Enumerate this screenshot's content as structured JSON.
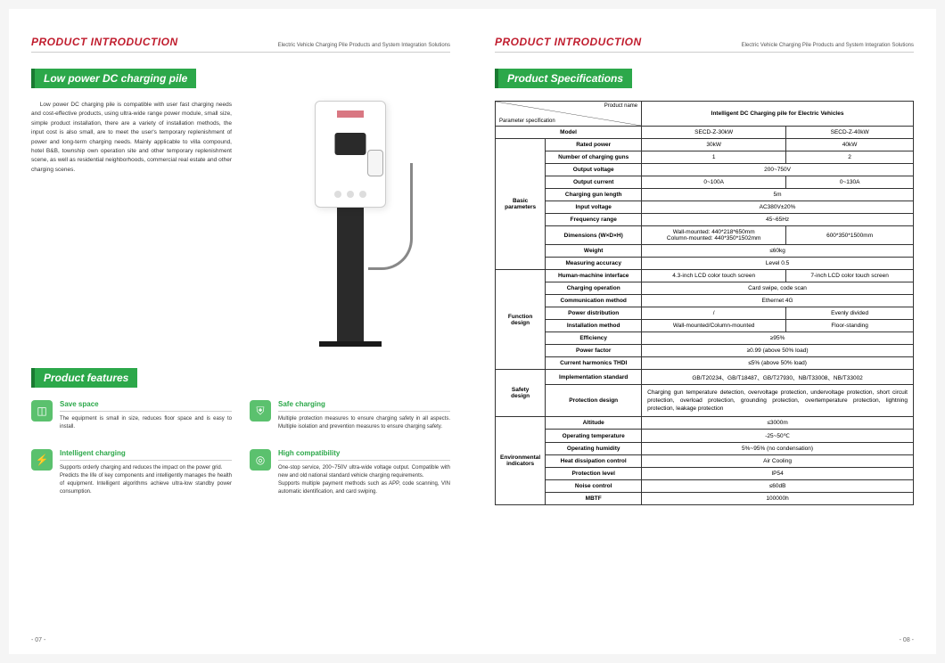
{
  "header": {
    "title": "PRODUCT INTRODUCTION",
    "subtitle": "Electric Vehicle Charging Pile Products and System Integration Solutions"
  },
  "left": {
    "section1_title": "Low power DC charging pile",
    "intro": "Low power DC charging pile is compatible with user fast charging needs and cost-effective products, using ultra-wide range power module, small size, simple product installation, there are a variety of installation methods, the input cost is also small, are to meet the user's temporary replenishment of power and long-term charging needs. Mainly applicable to villa compound, hotel B&B, township own operation site and other temporary replenishment scene, as well as residential neighborhoods, commercial real estate and other charging scenes.",
    "section2_title": "Product features",
    "features": [
      {
        "icon": "◫",
        "title": "Save space",
        "desc": "The equipment is small in size, reduces floor space and is easy to install."
      },
      {
        "icon": "⛨",
        "title": "Safe charging",
        "desc": "Multiple protection measures to ensure charging safety in all aspects. Multiple isolation and prevention measures to ensure charging safety."
      },
      {
        "icon": "⚡",
        "title": "Intelligent charging",
        "desc": "Supports orderly charging and reduces the impact on the power grid.\nPredicts the life of key components and intelligently manages the health of equipment. Intelligent algorithms achieve ultra-low standby power consumption."
      },
      {
        "icon": "◎",
        "title": "High compatibility",
        "desc": "One-stop service, 200~750V ultra-wide voltage output. Compatible with new and old national standard vehicle charging requirements.\nSupports multiple payment methods such as APP, code scanning, VIN automatic identification, and card swiping."
      }
    ],
    "pagenum": "- 07 -"
  },
  "right": {
    "section_title": "Product Specifications",
    "table": {
      "diag_a": "Product name",
      "diag_b": "Parameter specification",
      "product_name": "Intelligent DC Charging pile for Electric Vehicles",
      "groups": [
        {
          "group": "",
          "rows": [
            {
              "label": "Model",
              "cols": [
                "SECD-Z-30kW",
                "SECD-Z-40kW"
              ]
            }
          ]
        },
        {
          "group": "Basic parameters",
          "rows": [
            {
              "label": "Rated power",
              "cols": [
                "30kW",
                "40kW"
              ]
            },
            {
              "label": "Number of charging guns",
              "cols": [
                "1",
                "2"
              ]
            },
            {
              "label": "Output voltage",
              "span": "200~750V"
            },
            {
              "label": "Output current",
              "cols": [
                "0~100A",
                "0~130A"
              ]
            },
            {
              "label": "Charging gun length",
              "span": "5m"
            },
            {
              "label": "Input voltage",
              "span": "AC380V±20%"
            },
            {
              "label": "Frequency range",
              "span": "45~65Hz"
            },
            {
              "label": "Dimensions (W×D×H)",
              "cols": [
                "Wall-mounted: 440*218*650mm\nColumn-mounted: 440*350*1502mm",
                "600*350*1500mm"
              ]
            },
            {
              "label": "Weight",
              "span": "≤60kg"
            },
            {
              "label": "Measuring accuracy",
              "span": "Level 0.5"
            }
          ]
        },
        {
          "group": "Function design",
          "rows": [
            {
              "label": "Human-machine interface",
              "cols": [
                "4.3-inch LCD color touch screen",
                "7-inch LCD color touch screen"
              ]
            },
            {
              "label": "Charging operation",
              "span": "Card swipe, code scan"
            },
            {
              "label": "Communication method",
              "span": "Ethernet 4G"
            },
            {
              "label": "Power distribution",
              "cols": [
                "/",
                "Evenly divided"
              ]
            },
            {
              "label": "Installation method",
              "cols": [
                "Wall-mounted/Column-mounted",
                "Floor-standing"
              ]
            },
            {
              "label": "Efficiency",
              "span": "≥95%"
            },
            {
              "label": "Power factor",
              "span": "≥0.99 (above 50% load)"
            },
            {
              "label": "Current harmonics THDI",
              "span": "≤5% (above 50% load)"
            }
          ]
        },
        {
          "group": "Safety design",
          "rows": [
            {
              "label": "Implementation standard",
              "span": "GB/T20234、GB/T18487、GB/T27930、NB/T33008、NB/T33002"
            },
            {
              "label": "Protection design",
              "span_justify": "Charging gun temperature detection, overvoltage protection, undervoltage protection, short circuit protection, overload protection, grounding protection, overtemperature protection, lightning protection, leakage protection"
            }
          ]
        },
        {
          "group": "Environmental indicators",
          "rows": [
            {
              "label": "Altitude",
              "span": "≤3000m"
            },
            {
              "label": "Operating temperature",
              "span": "-25~50℃"
            },
            {
              "label": "Operating humidity",
              "span": "5%~95% (no condensation)"
            },
            {
              "label": "Heat dissipation control",
              "span": "Air Cooling"
            },
            {
              "label": "Protection level",
              "span": "IP54"
            },
            {
              "label": "Noise control",
              "span": "≤60dB"
            },
            {
              "label": "MBTF",
              "span": "100000h"
            }
          ]
        }
      ]
    },
    "pagenum": "- 08 -"
  }
}
